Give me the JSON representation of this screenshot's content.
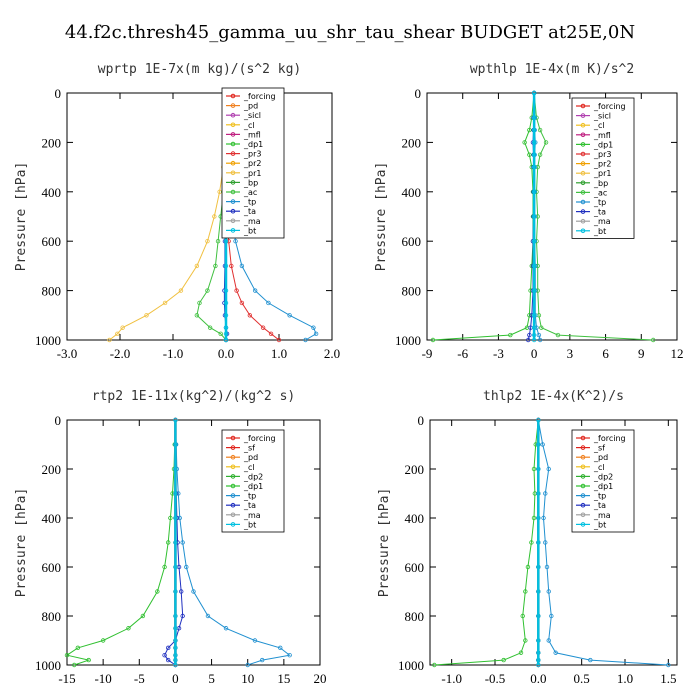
{
  "figure_title": "44.f2c.thresh45_gamma_uu_shr_tau_shear  BUDGET at25E,0N",
  "colors": {
    "_forcing": "#e0241c",
    "_sf": "#e0241c",
    "_pd": "#f08020",
    "_cl": "#f0c020",
    "_mfl": "#c02080",
    "_dp1": "#30c030",
    "_dp2": "#30b030",
    "_pr3": "#e03030",
    "_pr2": "#f0a000",
    "_pr1": "#f0c040",
    "_bp": "#30a030",
    "_ac": "#40c040",
    "_tp": "#2090d0",
    "_ta": "#2030c0",
    "_ma": "#a0a0a0",
    "_bt": "#00c0e0",
    "_sicl": "#b040b0"
  },
  "chart_data": [
    {
      "type": "line",
      "title": "wprtp  1E-7x(m kg)/(s^2 kg)",
      "ylabel": "Pressure  [hPa]",
      "xlim": [
        -3.0,
        2.0
      ],
      "ylim": [
        1000,
        0
      ],
      "xticks": [
        "-3.0",
        "-2.0",
        "-1.0",
        "0.0",
        "1.0",
        "2.0"
      ],
      "yticks": [
        "0",
        "200",
        "400",
        "600",
        "800",
        "1000"
      ],
      "legend": [
        "_forcing",
        "_pd",
        "_sicl",
        "_cl",
        "_mfl",
        "_dp1",
        "_pr3",
        "_pr2",
        "_pr1",
        "_bp",
        "_ac",
        "_tp",
        "_ta",
        "_ma",
        "_bt"
      ],
      "y": [
        0,
        100,
        200,
        300,
        400,
        500,
        600,
        700,
        800,
        850,
        900,
        950,
        975,
        1000
      ],
      "series": [
        {
          "name": "_pr1",
          "values": [
            0,
            0,
            -0.02,
            -0.05,
            -0.12,
            -0.22,
            -0.35,
            -0.55,
            -0.85,
            -1.15,
            -1.5,
            -1.95,
            -2.05,
            -2.2
          ]
        },
        {
          "name": "_ac",
          "values": [
            0,
            0,
            0,
            0.02,
            -0.05,
            -0.1,
            -0.15,
            -0.2,
            -0.35,
            -0.5,
            -0.55,
            -0.3,
            -0.1,
            0
          ]
        },
        {
          "name": "_tp",
          "values": [
            0,
            0,
            0.02,
            0.05,
            0.08,
            0.12,
            0.18,
            0.3,
            0.55,
            0.8,
            1.2,
            1.65,
            1.7,
            1.5
          ]
        },
        {
          "name": "_pr3",
          "values": [
            0,
            0,
            0,
            0,
            0.01,
            0.02,
            0.05,
            0.1,
            0.2,
            0.3,
            0.45,
            0.7,
            0.85,
            1.0
          ]
        },
        {
          "name": "_ta",
          "values": [
            0,
            0,
            0,
            0,
            0,
            0,
            -0.02,
            -0.02,
            -0.03,
            -0.03,
            -0.02,
            0,
            0.02,
            0
          ]
        },
        {
          "name": "_bt",
          "values": [
            0,
            0,
            0,
            0,
            0,
            0,
            0,
            0,
            0,
            0,
            0,
            0,
            0,
            0
          ]
        }
      ]
    },
    {
      "type": "line",
      "title": "wpthlp  1E-4x(m K)/s^2",
      "ylabel": "Pressure  [hPa]",
      "xlim": [
        -9,
        12
      ],
      "ylim": [
        1000,
        0
      ],
      "xticks": [
        "-9",
        "-6",
        "-3",
        "0",
        "3",
        "6",
        "9",
        "12"
      ],
      "yticks": [
        "0",
        "200",
        "400",
        "600",
        "800",
        "1000"
      ],
      "legend": [
        "_forcing",
        "_sicl",
        "_cl",
        "_mfl",
        "_dp1",
        "_pr3",
        "_pr2",
        "_pr1",
        "_bp",
        "_ac",
        "_tp",
        "_ta",
        "_ma",
        "_bt"
      ],
      "y": [
        0,
        100,
        150,
        200,
        250,
        300,
        400,
        500,
        600,
        700,
        800,
        900,
        950,
        980,
        1000
      ],
      "series": [
        {
          "name": "_ac",
          "values": [
            0,
            0.2,
            0.5,
            1.0,
            0.5,
            0.3,
            0.2,
            0.3,
            0.2,
            0.3,
            0.3,
            0.4,
            0.6,
            2.0,
            10.0
          ]
        },
        {
          "name": "_dp1",
          "values": [
            0,
            -0.2,
            -0.4,
            -0.8,
            -0.4,
            -0.2,
            -0.1,
            -0.1,
            -0.1,
            -0.2,
            -0.3,
            -0.4,
            -0.6,
            -2.0,
            -8.5
          ]
        },
        {
          "name": "_tp",
          "values": [
            0,
            0.05,
            0.05,
            0.1,
            0.05,
            0.05,
            0.05,
            0.05,
            0.05,
            0.1,
            0.1,
            0.1,
            0.2,
            0.4,
            0.5
          ]
        },
        {
          "name": "_ta",
          "values": [
            0,
            -0.05,
            -0.05,
            -0.1,
            -0.05,
            -0.05,
            -0.05,
            -0.05,
            -0.1,
            -0.1,
            -0.1,
            -0.2,
            -0.3,
            -0.4,
            -0.5
          ]
        },
        {
          "name": "_bt",
          "values": [
            0,
            0,
            0,
            0,
            0,
            0,
            0,
            0,
            0,
            0,
            0,
            0,
            0,
            0,
            0
          ]
        }
      ]
    },
    {
      "type": "line",
      "title": "rtp2  1E-11x(kg^2)/(kg^2 s)",
      "ylabel": "Pressure  [hPa]",
      "xlim": [
        -15,
        20
      ],
      "ylim": [
        1000,
        0
      ],
      "xticks": [
        "-15",
        "-10",
        "-5",
        "0",
        "5",
        "10",
        "15",
        "20"
      ],
      "yticks": [
        "0",
        "200",
        "400",
        "600",
        "800",
        "1000"
      ],
      "legend": [
        "_forcing",
        "_sf",
        "_pd",
        "_cl",
        "_dp2",
        "_dp1",
        "_tp",
        "_ta",
        "_ma",
        "_bt"
      ],
      "y": [
        0,
        100,
        200,
        300,
        400,
        500,
        600,
        700,
        800,
        850,
        900,
        930,
        960,
        980,
        1000
      ],
      "series": [
        {
          "name": "_dp1",
          "values": [
            0,
            -0.1,
            -0.2,
            -0.4,
            -0.7,
            -1.0,
            -1.5,
            -2.5,
            -4.5,
            -6.5,
            -10.0,
            -13.5,
            -15.0,
            -12.0,
            -14.0
          ]
        },
        {
          "name": "_tp",
          "values": [
            0,
            0.1,
            0.2,
            0.4,
            0.6,
            1.0,
            1.5,
            2.5,
            4.5,
            7.0,
            11.0,
            14.5,
            15.8,
            12.0,
            10.0
          ]
        },
        {
          "name": "_ta",
          "values": [
            0,
            0,
            0,
            0.1,
            0.2,
            0.3,
            0.5,
            0.8,
            1.0,
            0.5,
            0,
            -1.0,
            -1.5,
            -1.0,
            0
          ]
        },
        {
          "name": "_forcing",
          "values": [
            0,
            0,
            0,
            0,
            0,
            0,
            0,
            0,
            0,
            0,
            0,
            0,
            0,
            0,
            0
          ]
        },
        {
          "name": "_bt",
          "values": [
            0,
            0,
            0,
            0,
            0,
            0,
            0,
            0,
            0,
            0,
            0,
            0,
            0,
            0,
            0
          ]
        }
      ]
    },
    {
      "type": "line",
      "title": "thlp2  1E-4x(K^2)/s",
      "ylabel": "Pressure  [hPa]",
      "xlim": [
        -1.25,
        1.6
      ],
      "ylim": [
        1000,
        0
      ],
      "xticks": [
        "-1.0",
        "-0.5",
        "0.0",
        "0.5",
        "1.0",
        "1.5"
      ],
      "xtick_values": [
        -1.0,
        -0.5,
        0.0,
        0.5,
        1.0,
        1.5
      ],
      "yticks": [
        "0",
        "200",
        "400",
        "600",
        "800",
        "1000"
      ],
      "legend": [
        "_forcing",
        "_sf",
        "_pd",
        "_cl",
        "_dp2",
        "_dp1",
        "_tp",
        "_ta",
        "_ma",
        "_bt"
      ],
      "y": [
        0,
        100,
        200,
        300,
        400,
        500,
        600,
        700,
        800,
        900,
        950,
        980,
        1000
      ],
      "series": [
        {
          "name": "_dp1",
          "values": [
            0,
            -0.03,
            -0.05,
            -0.04,
            -0.05,
            -0.08,
            -0.12,
            -0.15,
            -0.18,
            -0.15,
            -0.2,
            -0.4,
            -1.2
          ]
        },
        {
          "name": "_tp",
          "values": [
            0,
            0.05,
            0.12,
            0.08,
            0.06,
            0.08,
            0.1,
            0.12,
            0.15,
            0.12,
            0.2,
            0.6,
            1.5
          ]
        },
        {
          "name": "_ta",
          "values": [
            0,
            0,
            0,
            0,
            0,
            0,
            0,
            0,
            0,
            0,
            0,
            0,
            0
          ]
        },
        {
          "name": "_forcing",
          "values": [
            0,
            0,
            0,
            0,
            0,
            0,
            0,
            0,
            0,
            0,
            0,
            0,
            0
          ]
        },
        {
          "name": "_bt",
          "values": [
            0,
            0,
            0,
            0,
            0,
            0,
            0,
            0,
            0,
            0,
            0,
            0,
            0
          ]
        }
      ]
    }
  ]
}
